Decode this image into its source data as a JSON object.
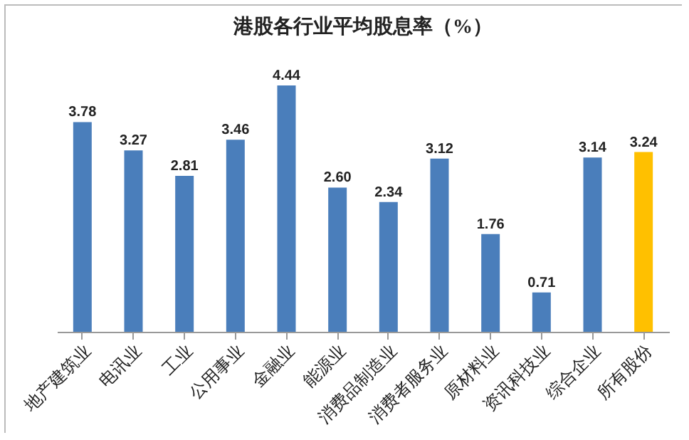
{
  "chart_data": {
    "type": "bar",
    "title": "港股各行业平均股息率（%）",
    "categories": [
      "地产建筑业",
      "电讯业",
      "工业",
      "公用事业",
      "金融业",
      "能源业",
      "消费品制造业",
      "消费者服务业",
      "原材料业",
      "资讯科技业",
      "综合企业",
      "所有股份"
    ],
    "values": [
      3.78,
      3.27,
      2.81,
      3.46,
      4.44,
      2.6,
      2.34,
      3.12,
      1.76,
      0.71,
      3.14,
      3.24
    ],
    "value_labels": [
      "3.78",
      "3.27",
      "2.81",
      "3.46",
      "4.44",
      "2.60",
      "2.34",
      "3.12",
      "1.76",
      "0.71",
      "3.14",
      "3.24"
    ],
    "colors": [
      "#4a7ebb",
      "#4a7ebb",
      "#4a7ebb",
      "#4a7ebb",
      "#4a7ebb",
      "#4a7ebb",
      "#4a7ebb",
      "#4a7ebb",
      "#4a7ebb",
      "#4a7ebb",
      "#4a7ebb",
      "#ffc000"
    ],
    "grid": false
  }
}
